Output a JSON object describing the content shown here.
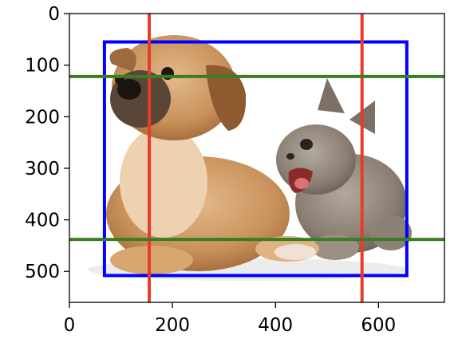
{
  "chart_data": {
    "type": "image",
    "title": "",
    "xlabel": "",
    "ylabel": "",
    "x_axis": {
      "range": [
        0,
        728
      ],
      "ticks": [
        0,
        200,
        400,
        600
      ],
      "tick_labels": [
        "0",
        "200",
        "400",
        "600"
      ]
    },
    "y_axis": {
      "range": [
        560,
        0
      ],
      "inverted": true,
      "ticks": [
        0,
        100,
        200,
        300,
        400,
        500
      ],
      "tick_labels": [
        "0",
        "100",
        "200",
        "300",
        "400",
        "500"
      ]
    },
    "grid": false,
    "image": {
      "description_icon": "dog-and-cat-photo"
    },
    "bounding_box": {
      "x_min": 68,
      "y_min": 55,
      "x_max": 655,
      "y_max": 508,
      "color": "#0000ff"
    },
    "vertical_lines": [
      {
        "x": 155,
        "color": "#e63c2c"
      },
      {
        "x": 568,
        "color": "#e63c2c"
      }
    ],
    "horizontal_lines": [
      {
        "y": 122,
        "color": "#3a7d23"
      },
      {
        "y": 438,
        "color": "#3a7d23"
      }
    ]
  }
}
